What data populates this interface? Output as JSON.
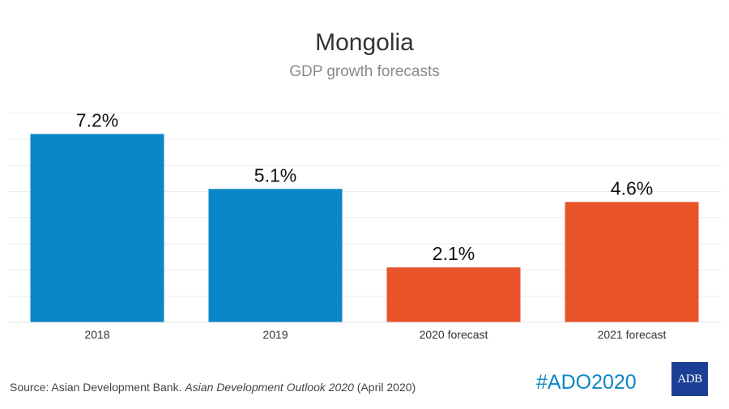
{
  "chart_data": {
    "type": "bar",
    "title": "Mongolia",
    "subtitle": "GDP growth forecasts",
    "categories": [
      "2018",
      "2019",
      "2020 forecast",
      "2021 forecast"
    ],
    "values": [
      7.2,
      5.1,
      2.1,
      4.6
    ],
    "value_labels": [
      "7.2%",
      "5.1%",
      "2.1%",
      "4.6%"
    ],
    "bar_colors": [
      "#0b86c6",
      "#0b86c6",
      "#e8532a",
      "#e8532a"
    ],
    "ylim": [
      0,
      8
    ],
    "grid": true,
    "xlabel": "",
    "ylabel": ""
  },
  "footer": {
    "source_prefix": "Source: Asian Development Bank. ",
    "source_title": "Asian Development Outlook 2020",
    "source_suffix": " (April 2020)",
    "hashtag": "#ADO2020",
    "logo_text": "ADB"
  }
}
